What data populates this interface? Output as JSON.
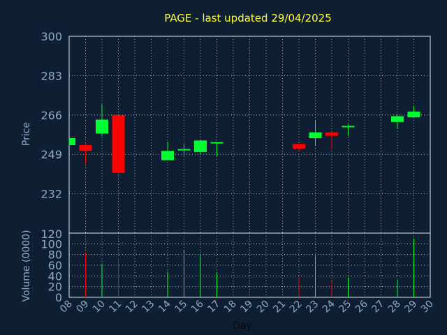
{
  "chart_data": {
    "type": "candlestick",
    "title": "PAGE - last updated 29/04/2025",
    "xlabel": "Day",
    "ylabel_price": "Price",
    "ylabel_volume": "Volume (0000)",
    "x_ticks": [
      "08",
      "09",
      "10",
      "11",
      "12",
      "13",
      "14",
      "15",
      "16",
      "17",
      "18",
      "19",
      "20",
      "21",
      "22",
      "23",
      "24",
      "25",
      "26",
      "27",
      "28",
      "29",
      "30"
    ],
    "price_ticks": [
      "300",
      "283",
      "266",
      "249",
      "232"
    ],
    "price_axis_break_label": "120",
    "volume_ticks": [
      "100",
      "80",
      "60",
      "40",
      "20",
      "0"
    ],
    "price_ylim": [
      215,
      300
    ],
    "volume_ylim": [
      0,
      120
    ],
    "grid": true,
    "colors": {
      "up": "#00ff33",
      "down": "#ff0000",
      "title": "#ffff33",
      "axis_text": "#8fa9c9",
      "grid": "#c8d2e0",
      "background": "#0f1f33"
    },
    "candles": [
      {
        "day": "08",
        "open": 253,
        "high": 256,
        "low": 253,
        "close": 256,
        "volume": 0
      },
      {
        "day": "09",
        "open": 253,
        "high": 253.5,
        "low": 245,
        "close": 250.5,
        "volume": 83
      },
      {
        "day": "10",
        "open": 258,
        "high": 270.5,
        "low": 257,
        "close": 264,
        "volume": 63
      },
      {
        "day": "11",
        "open": 266,
        "high": 266,
        "low": 239,
        "close": 241,
        "volume": 73
      },
      {
        "day": "14",
        "open": 246.5,
        "high": 254.5,
        "low": 246.5,
        "close": 250.5,
        "volume": 48
      },
      {
        "day": "15",
        "open": 251,
        "high": 253.5,
        "low": 248.5,
        "close": 251,
        "volume": 88
      },
      {
        "day": "16",
        "open": 250,
        "high": 255,
        "low": 249,
        "close": 255,
        "volume": 80
      },
      {
        "day": "17",
        "open": 253.5,
        "high": 254,
        "low": 248,
        "close": 254,
        "volume": 45
      },
      {
        "day": "22",
        "open": 253.5,
        "high": 253.5,
        "low": 250,
        "close": 251.5,
        "volume": 38
      },
      {
        "day": "23",
        "open": 256,
        "high": 263.5,
        "low": 253,
        "close": 258.5,
        "volume": 78
      },
      {
        "day": "24",
        "open": 258.5,
        "high": 258.5,
        "low": 251,
        "close": 257,
        "volume": 30
      },
      {
        "day": "25",
        "open": 261,
        "high": 262,
        "low": 257,
        "close": 261,
        "volume": 38
      },
      {
        "day": "28",
        "open": 263,
        "high": 266,
        "low": 260,
        "close": 265.5,
        "volume": 33
      },
      {
        "day": "29",
        "open": 265,
        "high": 270,
        "low": 265,
        "close": 267.5,
        "volume": 110
      }
    ]
  }
}
